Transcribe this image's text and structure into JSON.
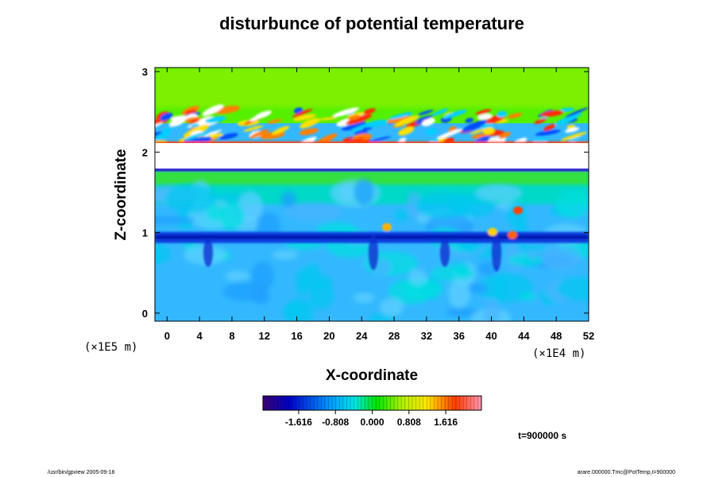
{
  "chart_data": {
    "type": "heatmap",
    "title": "disturbunce of potential temperature",
    "xlabel": "X-coordinate",
    "ylabel": "Z-coordinate",
    "x_unit": "(×1E4 m)",
    "y_unit": "(×1E5 m)",
    "xlim": [
      -1.5,
      52
    ],
    "ylim": [
      -0.1,
      3.05
    ],
    "x_ticks": [
      0,
      4,
      8,
      12,
      16,
      20,
      24,
      28,
      32,
      36,
      40,
      44,
      48,
      52
    ],
    "y_ticks": [
      0,
      1,
      2,
      3
    ],
    "colorbar": {
      "ticks": [
        "-1.616",
        "-0.808",
        "0.000",
        "0.808",
        "1.616"
      ],
      "range": [
        -2.4,
        2.4
      ]
    },
    "field_description_regions": {
      "upper_layer_z": [
        2.3,
        3.05
      ],
      "upper_layer_value": 0.25,
      "wave_band_z": [
        2.1,
        2.45
      ],
      "masked_band_z": [
        1.75,
        2.1
      ],
      "green_band_z": [
        1.55,
        1.75
      ],
      "lower_layer_value": -0.55,
      "cold_layer_z": 0.95,
      "cold_layer_value": -1.3
    },
    "annotation": "t=900000 s",
    "footer_left": "/usr/bin/gpview 2005-09-18",
    "footer_right": "arare.000000.Tmc@PotTemp,t=900000"
  }
}
